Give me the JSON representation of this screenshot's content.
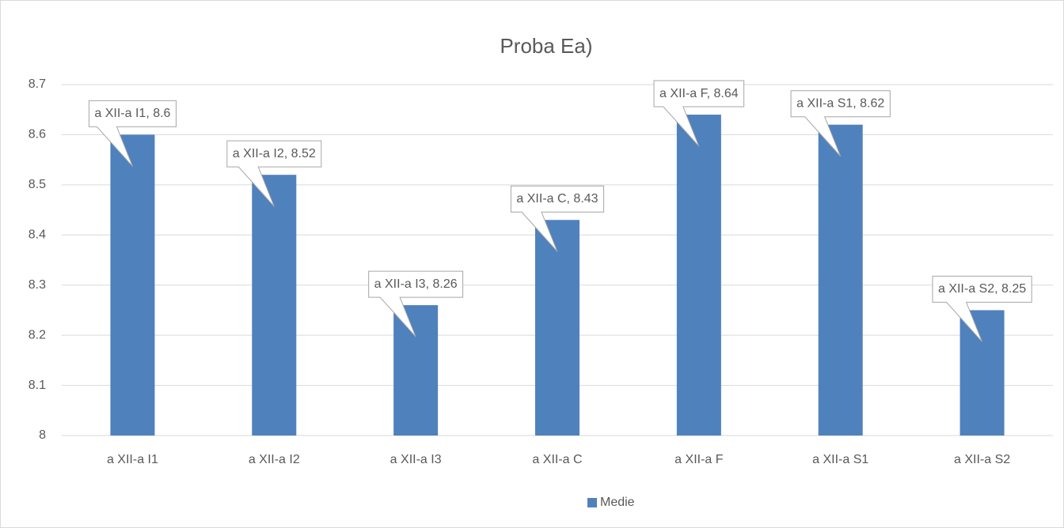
{
  "chart_data": {
    "type": "bar",
    "title": "Proba Ea)",
    "categories": [
      "a XII-a I1",
      "a XII-a I2",
      "a XII-a I3",
      "a XII-a C",
      "a XII-a F",
      "a XII-a S1",
      "a XII-a S2"
    ],
    "series": [
      {
        "name": "Medie",
        "color": "#4f81bd",
        "values": [
          8.6,
          8.52,
          8.26,
          8.43,
          8.64,
          8.62,
          8.25
        ],
        "value_labels": [
          "a XII-a I1, 8.6",
          "a XII-a I2, 8.52",
          "a XII-a I3, 8.26",
          "a XII-a C, 8.43",
          "a XII-a F, 8.64",
          "a XII-a S1, 8.62",
          "a XII-a S2, 8.25"
        ]
      }
    ],
    "ylim": [
      8,
      8.7
    ],
    "yticks": [
      8,
      8.1,
      8.2,
      8.3,
      8.4,
      8.5,
      8.6,
      8.7
    ],
    "grid": true,
    "legend": "bottom"
  }
}
